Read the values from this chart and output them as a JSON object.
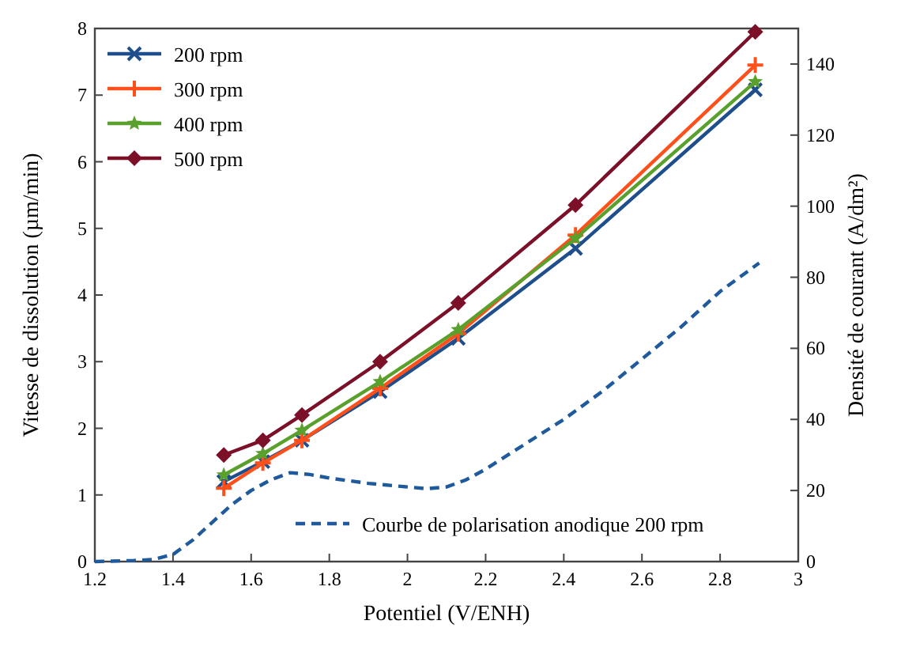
{
  "chart_data": {
    "type": "line",
    "xlabel": "Potentiel (V/ENH)",
    "ylabel": "Vitesse de dissolution (µm/min)",
    "y2label": "Densité de courant (A/dm²)",
    "x": [
      1.53,
      1.63,
      1.73,
      1.93,
      2.13,
      2.43,
      2.89
    ],
    "xlim": [
      1.2,
      3
    ],
    "xticks": [
      1.2,
      1.4,
      1.6,
      1.8,
      2,
      2.2,
      2.4,
      2.6,
      2.8,
      3
    ],
    "ylim": [
      0,
      8
    ],
    "yticks": [
      0,
      1,
      2,
      3,
      4,
      5,
      6,
      7,
      8
    ],
    "y2lim": [
      0,
      150
    ],
    "y2ticks": [
      0,
      20,
      40,
      60,
      80,
      100,
      120,
      140
    ],
    "legend": "top left",
    "grid": false,
    "series": [
      {
        "name": "200 rpm",
        "color": "#1f4e8c",
        "marker": "cross",
        "values": [
          1.2,
          1.5,
          1.82,
          2.55,
          3.35,
          4.7,
          7.08
        ]
      },
      {
        "name": "300 rpm",
        "color": "#ff4f1a",
        "marker": "plus",
        "values": [
          1.1,
          1.48,
          1.82,
          2.6,
          3.42,
          4.9,
          7.45
        ]
      },
      {
        "name": "400 rpm",
        "color": "#5aa02c",
        "marker": "star",
        "values": [
          1.3,
          1.62,
          1.97,
          2.7,
          3.48,
          4.85,
          7.2
        ]
      },
      {
        "name": "500 rpm",
        "color": "#7b1028",
        "marker": "diamond",
        "values": [
          1.6,
          1.82,
          2.2,
          3.0,
          3.88,
          5.35,
          7.95
        ]
      },
      {
        "name": "Courbe de polarisation anodique 200 rpm",
        "color": "#1f5a9c",
        "axis": "y2",
        "line_style": "dashed",
        "marker": "none",
        "x": [
          1.2,
          1.3,
          1.35,
          1.4,
          1.45,
          1.5,
          1.55,
          1.6,
          1.65,
          1.7,
          1.75,
          1.8,
          1.9,
          2.0,
          2.05,
          2.1,
          2.15,
          2.2,
          2.3,
          2.4,
          2.5,
          2.6,
          2.7,
          2.8,
          2.9
        ],
        "values": [
          0,
          0.3,
          0.6,
          2,
          6,
          11,
          16,
          20,
          23,
          25,
          24.5,
          23.5,
          22,
          21,
          20.5,
          21,
          23,
          26,
          33,
          40,
          48,
          57,
          66,
          76,
          84
        ]
      }
    ]
  }
}
